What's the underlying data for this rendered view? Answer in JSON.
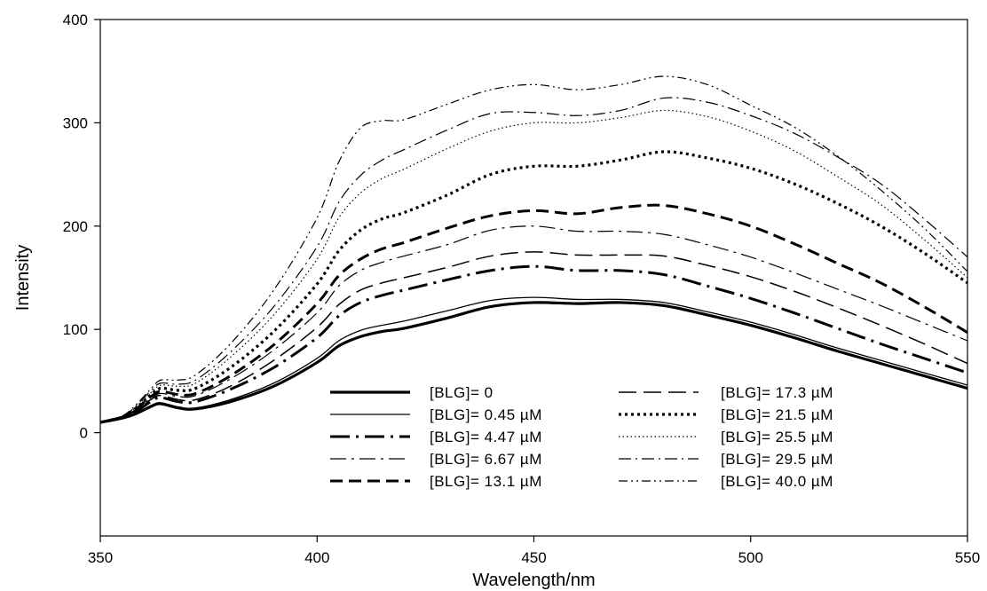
{
  "chart_data": {
    "type": "line",
    "title": "",
    "xlabel": "Wavelength/nm",
    "ylabel": "Intensity",
    "xlim": [
      350,
      550
    ],
    "ylim": [
      -100,
      400
    ],
    "xticks": [
      350,
      400,
      450,
      500,
      550
    ],
    "yticks": [
      0,
      100,
      200,
      300,
      400
    ],
    "x": [
      350,
      355,
      358,
      362,
      364,
      368,
      372,
      380,
      390,
      400,
      405,
      410,
      415,
      420,
      430,
      440,
      450,
      460,
      470,
      480,
      490,
      500,
      510,
      520,
      530,
      540,
      550
    ],
    "legend_position": "bottom-center",
    "series": [
      {
        "name": "[BLG]= 0",
        "dash": "thick-solid",
        "values": [
          10,
          14,
          18,
          26,
          28,
          24,
          23,
          30,
          45,
          68,
          84,
          93,
          98,
          101,
          111,
          122,
          126,
          125,
          126,
          123,
          114,
          104,
          92,
          79,
          67,
          55,
          43
        ]
      },
      {
        "name": "[BLG]= 0.45 µM",
        "dash": "thin-solid",
        "values": [
          10,
          14,
          18,
          27,
          29,
          25,
          24,
          32,
          48,
          72,
          89,
          99,
          104,
          108,
          118,
          128,
          131,
          129,
          129,
          126,
          117,
          107,
          95,
          82,
          70,
          58,
          46
        ]
      },
      {
        "name": "[BLG]= 4.47 µM",
        "dash": "long-dash-dot",
        "values": [
          10,
          15,
          20,
          31,
          34,
          30,
          30,
          42,
          63,
          92,
          113,
          126,
          133,
          138,
          148,
          157,
          161,
          157,
          157,
          153,
          142,
          130,
          116,
          101,
          86,
          72,
          58
        ]
      },
      {
        "name": "[BLG]= 6.67 µM",
        "dash": "long-dash-dot-thin",
        "values": [
          10,
          15,
          22,
          34,
          38,
          35,
          36,
          52,
          80,
          116,
          142,
          157,
          165,
          171,
          182,
          196,
          200,
          195,
          195,
          192,
          182,
          170,
          155,
          139,
          123,
          106,
          89
        ]
      },
      {
        "name": "[BLG]= 13.1 µM",
        "dash": "thick-dash",
        "values": [
          10,
          15,
          22,
          36,
          40,
          37,
          38,
          55,
          85,
          125,
          152,
          168,
          178,
          184,
          198,
          210,
          215,
          212,
          218,
          220,
          212,
          200,
          183,
          164,
          145,
          122,
          97
        ]
      },
      {
        "name": "[BLG]= 17.3 µM",
        "dash": "long-dash",
        "values": [
          10,
          15,
          21,
          33,
          36,
          32,
          32,
          45,
          70,
          102,
          124,
          138,
          145,
          150,
          160,
          171,
          175,
          172,
          172,
          171,
          162,
          151,
          137,
          121,
          104,
          86,
          67
        ]
      },
      {
        "name": "[BLG]= 21.5 µM",
        "dash": "bold-dots",
        "values": [
          10,
          15,
          23,
          38,
          43,
          41,
          43,
          63,
          98,
          144,
          176,
          196,
          207,
          213,
          230,
          250,
          258,
          258,
          264,
          272,
          266,
          256,
          241,
          222,
          200,
          174,
          145
        ]
      },
      {
        "name": "[BLG]= 25.5 µM",
        "dash": "fine-dots",
        "values": [
          10,
          15,
          24,
          40,
          46,
          45,
          48,
          73,
          114,
          168,
          208,
          232,
          246,
          255,
          275,
          292,
          300,
          300,
          305,
          312,
          306,
          292,
          273,
          248,
          221,
          187,
          150
        ]
      },
      {
        "name": "[BLG]= 29.5 µM",
        "dash": "dash-dot",
        "values": [
          10,
          15,
          25,
          42,
          48,
          47,
          51,
          78,
          122,
          180,
          223,
          249,
          264,
          274,
          293,
          309,
          310,
          307,
          312,
          324,
          320,
          307,
          290,
          267,
          241,
          207,
          170
        ]
      },
      {
        "name": "[BLG]= 40.0 µM",
        "dash": "dash-dot-dot",
        "values": [
          10,
          16,
          26,
          44,
          51,
          51,
          56,
          86,
          138,
          208,
          262,
          295,
          302,
          303,
          318,
          332,
          337,
          332,
          337,
          345,
          337,
          317,
          296,
          268,
          235,
          198,
          156
        ]
      }
    ]
  }
}
